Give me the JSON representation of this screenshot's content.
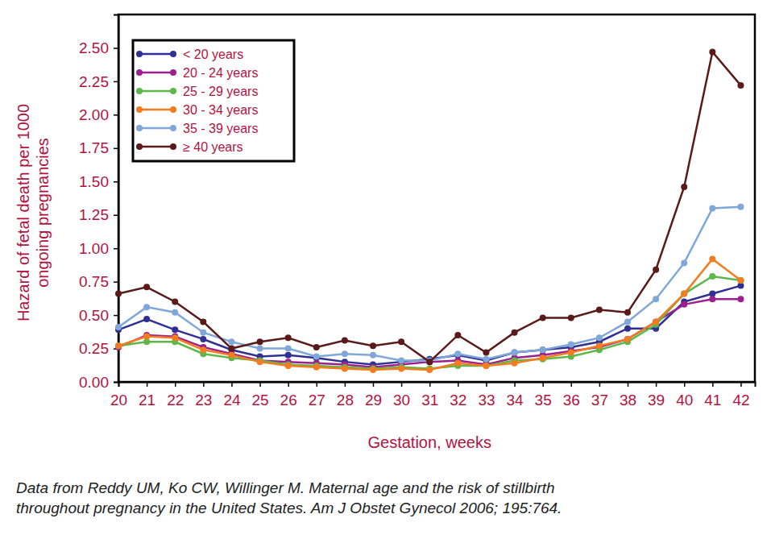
{
  "chart_data": {
    "type": "line",
    "x_label": "Gestation, weeks",
    "y_label": [
      "Hazard of fetal death per 1000",
      "ongoing pregnancies"
    ],
    "annotations": [
      "Data from Reddy UM, Ko CW, Willinger M. Maternal age and the risk of stillbirth",
      "throughout pregnancy in the United States. Am J Obstet Gynecol 2006; 195:764."
    ],
    "x": [
      20,
      21,
      22,
      23,
      24,
      25,
      26,
      27,
      28,
      29,
      30,
      31,
      32,
      33,
      34,
      35,
      36,
      37,
      38,
      39,
      40,
      41,
      42
    ],
    "xlim": [
      20,
      42.5
    ],
    "xticks": [
      20,
      21,
      22,
      23,
      24,
      25,
      26,
      27,
      28,
      29,
      30,
      31,
      32,
      33,
      34,
      35,
      36,
      37,
      38,
      39,
      40,
      41,
      42
    ],
    "ylim": [
      0,
      2.75
    ],
    "yticks": [
      {
        "value": 0,
        "label": "0.00"
      },
      {
        "value": 0.25,
        "label": "0.25"
      },
      {
        "value": 0.5,
        "label": "0.50"
      },
      {
        "value": 0.75,
        "label": "0.75"
      },
      {
        "value": 1,
        "label": "1.00"
      },
      {
        "value": 1.25,
        "label": "1.25"
      },
      {
        "value": 1.5,
        "label": "1.50"
      },
      {
        "value": 1.75,
        "label": "1.75"
      },
      {
        "value": 2,
        "label": "2.00"
      },
      {
        "value": 2.25,
        "label": "2.25"
      },
      {
        "value": 2.5,
        "label": "2.50"
      }
    ],
    "legend": "top-left",
    "marker": "circle",
    "series": [
      {
        "name": "< 20 years",
        "color": "#2e3192",
        "values": [
          0.39,
          0.47,
          0.39,
          0.32,
          0.24,
          0.19,
          0.2,
          0.18,
          0.15,
          0.13,
          0.15,
          0.17,
          0.2,
          0.16,
          0.22,
          0.24,
          0.26,
          0.3,
          0.4,
          0.4,
          0.6,
          0.66,
          0.72
        ]
      },
      {
        "name": "20 - 24 years",
        "color": "#9b1f8f",
        "values": [
          0.26,
          0.35,
          0.34,
          0.26,
          0.21,
          0.16,
          0.15,
          0.14,
          0.13,
          0.11,
          0.13,
          0.15,
          0.16,
          0.13,
          0.18,
          0.2,
          0.23,
          0.26,
          0.32,
          0.45,
          0.58,
          0.62,
          0.62
        ]
      },
      {
        "name": "25 - 29 years",
        "color": "#5cb848",
        "values": [
          0.27,
          0.3,
          0.3,
          0.21,
          0.18,
          0.16,
          0.13,
          0.12,
          0.11,
          0.1,
          0.11,
          0.1,
          0.12,
          0.12,
          0.16,
          0.17,
          0.19,
          0.24,
          0.3,
          0.43,
          0.66,
          0.79,
          0.76
        ]
      },
      {
        "name": "30 - 34 years",
        "color": "#f47c20",
        "values": [
          0.27,
          0.34,
          0.33,
          0.24,
          0.2,
          0.15,
          0.12,
          0.11,
          0.1,
          0.09,
          0.1,
          0.09,
          0.14,
          0.12,
          0.14,
          0.18,
          0.22,
          0.27,
          0.32,
          0.45,
          0.66,
          0.92,
          0.76
        ]
      },
      {
        "name": "35 - 39 years",
        "color": "#7fa7d9",
        "values": [
          0.41,
          0.56,
          0.52,
          0.37,
          0.3,
          0.25,
          0.25,
          0.19,
          0.21,
          0.2,
          0.16,
          0.16,
          0.21,
          0.17,
          0.22,
          0.24,
          0.28,
          0.33,
          0.45,
          0.62,
          0.89,
          1.3,
          1.31
        ]
      },
      {
        "name": "≥ 40 years",
        "color": "#5a1a1a",
        "values": [
          0.66,
          0.71,
          0.6,
          0.45,
          0.25,
          0.3,
          0.33,
          0.26,
          0.31,
          0.27,
          0.3,
          0.15,
          0.35,
          0.22,
          0.37,
          0.48,
          0.48,
          0.54,
          0.52,
          0.84,
          1.46,
          2.47,
          2.22
        ]
      }
    ]
  }
}
